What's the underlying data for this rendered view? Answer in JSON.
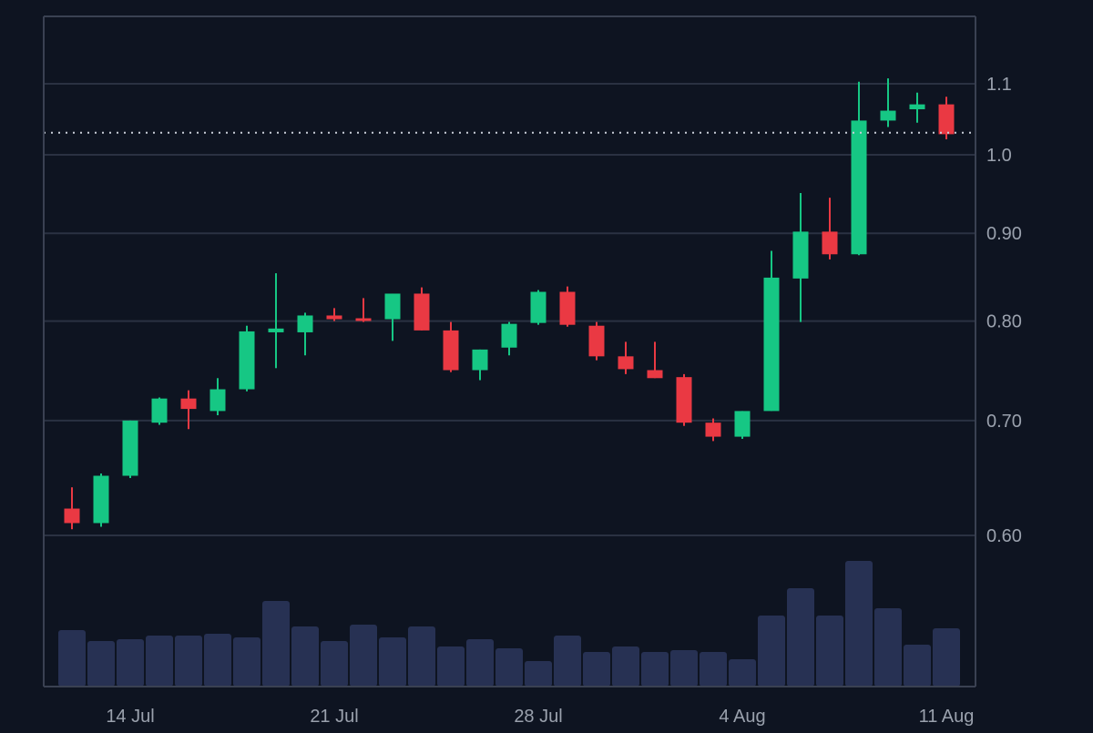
{
  "chart_data": {
    "type": "candlestick",
    "scale": "log",
    "ylim": [
      0.52,
      1.2
    ],
    "y_ticks": [
      {
        "value": 0.6,
        "label": "0.60"
      },
      {
        "value": 0.7,
        "label": "0.70"
      },
      {
        "value": 0.8,
        "label": "0.80"
      },
      {
        "value": 0.9,
        "label": "0.90"
      },
      {
        "value": 1.0,
        "label": "1.0"
      },
      {
        "value": 1.1,
        "label": "1.1"
      }
    ],
    "x_ticks": [
      {
        "index": 2,
        "label": "14 Jul"
      },
      {
        "index": 9,
        "label": "21 Jul"
      },
      {
        "index": 16,
        "label": "28 Jul"
      },
      {
        "index": 23,
        "label": "4 Aug"
      },
      {
        "index": 30,
        "label": "11 Aug"
      }
    ],
    "last_price": 1.03,
    "grid": true,
    "legend": "none",
    "colors": {
      "background": "#0e1421",
      "up": "#16c784",
      "down": "#ea3943",
      "volume": "#273153",
      "grid": "#2a3142",
      "axis_text": "#9aa1ad",
      "last_price_line": "#c9ced8"
    },
    "candles": [
      {
        "open": 0.622,
        "high": 0.64,
        "low": 0.605,
        "close": 0.61,
        "volume": 62
      },
      {
        "open": 0.61,
        "high": 0.652,
        "low": 0.607,
        "close": 0.65,
        "volume": 50
      },
      {
        "open": 0.65,
        "high": 0.7,
        "low": 0.648,
        "close": 0.7,
        "volume": 52
      },
      {
        "open": 0.698,
        "high": 0.722,
        "low": 0.696,
        "close": 0.721,
        "volume": 56
      },
      {
        "open": 0.721,
        "high": 0.729,
        "low": 0.692,
        "close": 0.711,
        "volume": 56
      },
      {
        "open": 0.709,
        "high": 0.741,
        "low": 0.705,
        "close": 0.73,
        "volume": 58
      },
      {
        "open": 0.73,
        "high": 0.795,
        "low": 0.728,
        "close": 0.789,
        "volume": 54
      },
      {
        "open": 0.788,
        "high": 0.853,
        "low": 0.751,
        "close": 0.792,
        "volume": 94
      },
      {
        "open": 0.788,
        "high": 0.809,
        "low": 0.764,
        "close": 0.806,
        "volume": 66
      },
      {
        "open": 0.806,
        "high": 0.814,
        "low": 0.8,
        "close": 0.802,
        "volume": 50
      },
      {
        "open": 0.803,
        "high": 0.825,
        "low": 0.799,
        "close": 0.801,
        "volume": 68
      },
      {
        "open": 0.802,
        "high": 0.83,
        "low": 0.779,
        "close": 0.83,
        "volume": 54
      },
      {
        "open": 0.83,
        "high": 0.837,
        "low": 0.79,
        "close": 0.79,
        "volume": 66
      },
      {
        "open": 0.79,
        "high": 0.799,
        "low": 0.747,
        "close": 0.749,
        "volume": 44
      },
      {
        "open": 0.749,
        "high": 0.77,
        "low": 0.739,
        "close": 0.77,
        "volume": 52
      },
      {
        "open": 0.772,
        "high": 0.799,
        "low": 0.764,
        "close": 0.797,
        "volume": 42
      },
      {
        "open": 0.798,
        "high": 0.834,
        "low": 0.796,
        "close": 0.832,
        "volume": 28
      },
      {
        "open": 0.832,
        "high": 0.838,
        "low": 0.794,
        "close": 0.796,
        "volume": 56
      },
      {
        "open": 0.795,
        "high": 0.799,
        "low": 0.759,
        "close": 0.763,
        "volume": 38
      },
      {
        "open": 0.763,
        "high": 0.778,
        "low": 0.745,
        "close": 0.75,
        "volume": 44
      },
      {
        "open": 0.749,
        "high": 0.778,
        "low": 0.741,
        "close": 0.741,
        "volume": 38
      },
      {
        "open": 0.742,
        "high": 0.745,
        "low": 0.695,
        "close": 0.698,
        "volume": 40
      },
      {
        "open": 0.698,
        "high": 0.702,
        "low": 0.681,
        "close": 0.685,
        "volume": 38
      },
      {
        "open": 0.685,
        "high": 0.709,
        "low": 0.683,
        "close": 0.709,
        "volume": 30
      },
      {
        "open": 0.709,
        "high": 0.879,
        "low": 0.709,
        "close": 0.848,
        "volume": 78
      },
      {
        "open": 0.847,
        "high": 0.95,
        "low": 0.799,
        "close": 0.902,
        "volume": 108
      },
      {
        "open": 0.902,
        "high": 0.944,
        "low": 0.869,
        "close": 0.875,
        "volume": 78
      },
      {
        "open": 0.875,
        "high": 1.103,
        "low": 0.874,
        "close": 1.047,
        "volume": 138
      },
      {
        "open": 1.047,
        "high": 1.108,
        "low": 1.038,
        "close": 1.061,
        "volume": 86
      },
      {
        "open": 1.063,
        "high": 1.087,
        "low": 1.044,
        "close": 1.07,
        "volume": 46
      },
      {
        "open": 1.07,
        "high": 1.081,
        "low": 1.021,
        "close": 1.028,
        "volume": 64
      }
    ]
  }
}
